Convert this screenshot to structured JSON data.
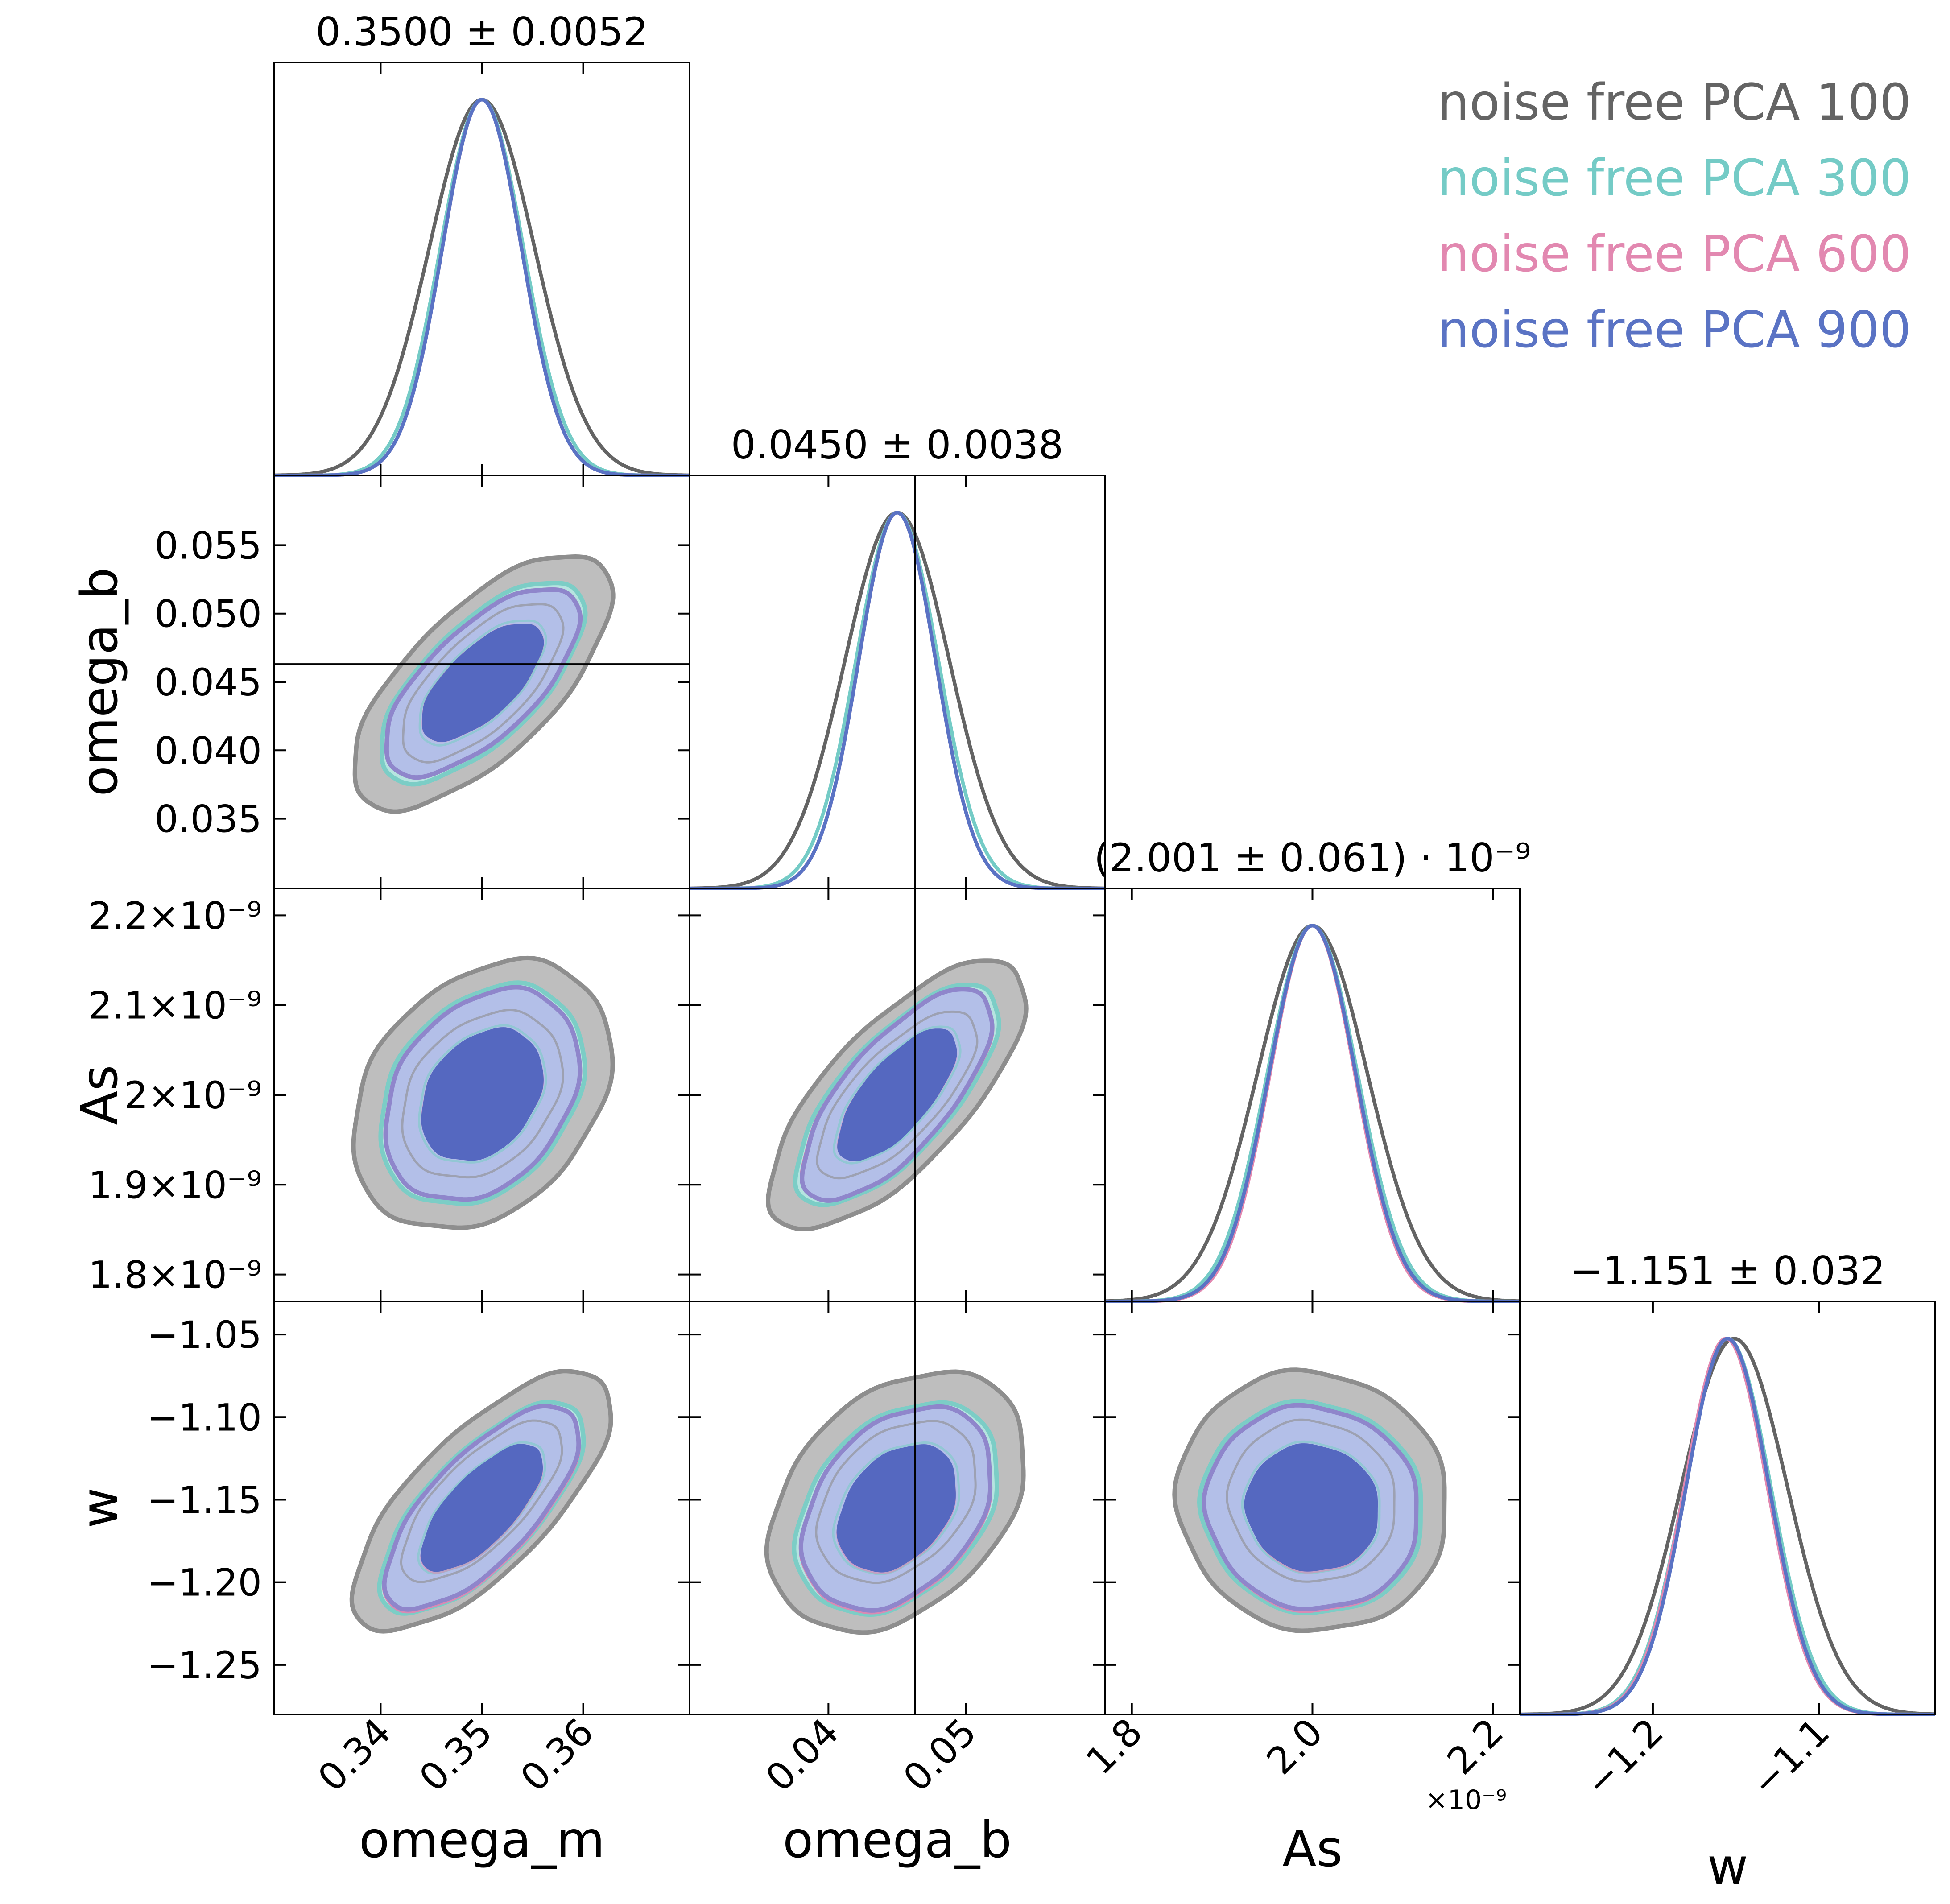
{
  "chart_data": {
    "type": "corner",
    "parameters": [
      {
        "key": "omega_m",
        "label": "omega_m",
        "range": [
          0.3295,
          0.3705
        ],
        "ticks": [
          0.34,
          0.35,
          0.36
        ],
        "tick_labels": [
          "0.34",
          "0.35",
          "0.36"
        ],
        "title": "0.3500 ± 0.0052"
      },
      {
        "key": "omega_b",
        "label": "omega_b",
        "range": [
          0.0299,
          0.0601
        ],
        "ticks": [
          0.035,
          0.04,
          0.045,
          0.05,
          0.055
        ],
        "y_tick_labels": [
          "0.035",
          "0.040",
          "0.045",
          "0.050",
          "0.055"
        ],
        "x_ticks": [
          0.04,
          0.05
        ],
        "x_tick_labels": [
          "0.04",
          "0.05"
        ],
        "title": "0.0450 ± 0.0038"
      },
      {
        "key": "As",
        "label": "As",
        "range": [
          1.77,
          2.23
        ],
        "ticks": [
          1.8,
          1.9,
          2.0,
          2.1,
          2.2
        ],
        "y_tick_labels": [
          "1.8×10⁻⁹",
          "1.9×10⁻⁹",
          "2×10⁻⁹",
          "2.1×10⁻⁹",
          "2.2×10⁻⁹"
        ],
        "x_ticks": [
          1.8,
          2.0,
          2.2
        ],
        "x_tick_labels": [
          "1.8",
          "2.0",
          "2.2"
        ],
        "x_offset_label": "×10⁻⁹",
        "title": "(2.001 ± 0.061) · 10⁻⁹"
      },
      {
        "key": "w",
        "label": "w",
        "range": [
          -1.28,
          -1.03
        ],
        "ticks": [
          -1.25,
          -1.2,
          -1.15,
          -1.1,
          -1.05
        ],
        "y_tick_labels": [
          "−1.25",
          "−1.20",
          "−1.15",
          "−1.10",
          "−1.05"
        ],
        "x_ticks": [
          -1.2,
          -1.1
        ],
        "x_tick_labels": [
          "−1.2",
          "−1.1"
        ],
        "title": "−1.151 ± 0.032"
      }
    ],
    "series": [
      {
        "name": "noise free PCA 100",
        "color": "#646464",
        "mean": [
          0.35,
          0.045,
          2.0,
          -1.151
        ],
        "sigma": [
          0.0052,
          0.0038,
          0.061,
          0.032
        ]
      },
      {
        "name": "noise free PCA 300",
        "color": "#74cbc6",
        "mean": [
          0.35,
          0.045,
          2.0,
          -1.155
        ],
        "sigma": [
          0.0041,
          0.003,
          0.05,
          0.026
        ]
      },
      {
        "name": "noise free PCA 600",
        "color": "#e288b0",
        "mean": [
          0.35,
          0.045,
          2.0,
          -1.156
        ],
        "sigma": [
          0.0039,
          0.0028,
          0.047,
          0.025
        ]
      },
      {
        "name": "noise free PCA 900",
        "color": "#5a73c4",
        "mean": [
          0.35,
          0.045,
          2.0,
          -1.155
        ],
        "sigma": [
          0.0039,
          0.0028,
          0.048,
          0.025
        ]
      }
    ],
    "correlations": {
      "0-1": 0.68,
      "0-2": 0.3,
      "1-2": 0.72,
      "0-3": 0.72,
      "1-3": 0.35,
      "2-3": -0.05
    },
    "truth_lines": {
      "omega_b": 0.0463
    },
    "contour_colors": {
      "100": {
        "fill": "#bebebe",
        "edge": "#8e8e8e"
      },
      "300": {
        "fill": "#b6e4e0",
        "edge": "#7ccdc6"
      },
      "600": {
        "fill": "#e8c4dc",
        "edge": "#d98ab4"
      },
      "900": {
        "outer_fill": "#b3bfe8",
        "outer_edge": "#8f86cb",
        "inner_fill": "#5568c0"
      }
    },
    "legend_position": "top-right",
    "grid": false
  }
}
